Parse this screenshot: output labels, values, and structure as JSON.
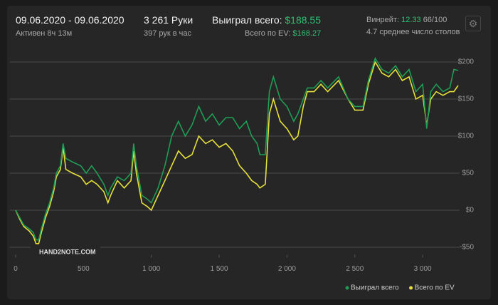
{
  "header": {
    "date_range": "09.06.2020 - 09.06.2020",
    "active": "Активен 8ч 13м",
    "hands": "3 261 Руки",
    "hands_per_hour": "397 рук в час",
    "won_label": "Выиграл всего:",
    "won_value": "$188.55",
    "ev_label": "Всего по EV:",
    "ev_value": "$168.27",
    "winrate_label": "Винрейт:",
    "winrate_value": "12.33",
    "winrate_hands": "66/100",
    "tables": "4.7 среднее число столов"
  },
  "logo": "HAND2NOTE.COM",
  "chart_data": {
    "type": "line",
    "x": [
      0,
      30,
      60,
      100,
      130,
      150,
      170,
      190,
      220,
      250,
      280,
      300,
      330,
      350,
      370,
      420,
      480,
      520,
      560,
      600,
      650,
      680,
      700,
      750,
      800,
      850,
      870,
      890,
      930,
      970,
      1000,
      1050,
      1100,
      1150,
      1200,
      1250,
      1300,
      1350,
      1400,
      1450,
      1500,
      1550,
      1600,
      1650,
      1700,
      1740,
      1780,
      1800,
      1840,
      1870,
      1900,
      1950,
      2000,
      2050,
      2080,
      2120,
      2150,
      2200,
      2250,
      2300,
      2380,
      2450,
      2500,
      2560,
      2600,
      2650,
      2700,
      2750,
      2800,
      2850,
      2900,
      2950,
      3000,
      3030,
      3060,
      3100,
      3150,
      3200,
      3230,
      3261
    ],
    "series": [
      {
        "name": "Выиграл всего",
        "color": "#1f9d55",
        "values": [
          0,
          -10,
          -20,
          -25,
          -30,
          -40,
          -40,
          -25,
          -5,
          10,
          30,
          50,
          60,
          90,
          70,
          65,
          60,
          50,
          60,
          50,
          35,
          20,
          30,
          45,
          40,
          50,
          90,
          60,
          20,
          15,
          10,
          30,
          60,
          100,
          120,
          100,
          115,
          140,
          120,
          130,
          115,
          125,
          125,
          110,
          120,
          100,
          90,
          75,
          75,
          160,
          180,
          150,
          140,
          120,
          130,
          150,
          165,
          165,
          175,
          165,
          180,
          150,
          140,
          140,
          175,
          205,
          190,
          185,
          195,
          180,
          190,
          160,
          170,
          110,
          160,
          170,
          160,
          165,
          190,
          188.55
        ]
      },
      {
        "name": "Всего по EV",
        "color": "#e6e03a",
        "values": [
          0,
          -12,
          -22,
          -28,
          -35,
          -45,
          -45,
          -30,
          -10,
          5,
          25,
          45,
          55,
          85,
          55,
          50,
          45,
          35,
          40,
          35,
          25,
          10,
          20,
          40,
          30,
          40,
          80,
          50,
          10,
          5,
          0,
          20,
          40,
          60,
          80,
          70,
          75,
          100,
          90,
          95,
          85,
          90,
          80,
          60,
          50,
          40,
          35,
          30,
          35,
          130,
          150,
          120,
          110,
          95,
          100,
          140,
          160,
          160,
          170,
          160,
          175,
          150,
          135,
          135,
          170,
          200,
          185,
          180,
          190,
          175,
          180,
          150,
          155,
          115,
          150,
          160,
          155,
          160,
          160,
          168.27
        ]
      }
    ],
    "xlim": [
      0,
      3270
    ],
    "xticks": [
      0,
      500,
      {
        "value": 1000,
        "label": "1 000"
      },
      {
        "value": 1500,
        "label": "1 500"
      },
      {
        "value": 2000,
        "label": "2 000"
      },
      {
        "value": 2500,
        "label": "2 500"
      },
      {
        "value": 3000,
        "label": "3 000"
      }
    ],
    "ylim": [
      -60,
      210
    ],
    "yticks": [
      {
        "value": -50,
        "label": "-$50"
      },
      {
        "value": 0,
        "label": "$0"
      },
      {
        "value": 50,
        "label": "$50"
      },
      {
        "value": 100,
        "label": "$100"
      },
      {
        "value": 150,
        "label": "$150"
      },
      {
        "value": 200,
        "label": "$200"
      }
    ],
    "grid": true,
    "legend": "bottom-right"
  }
}
